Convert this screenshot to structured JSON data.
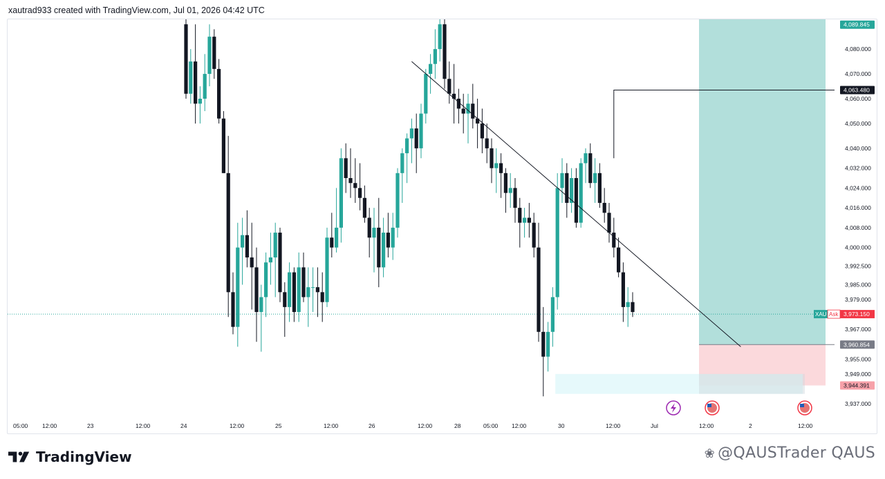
{
  "header": {
    "attribution": "xautrad933 created with TradingView.com, Jul 01, 2026 04:42 UTC"
  },
  "footer": {
    "brand": "TradingView"
  },
  "watermark": {
    "text": "@QAUSTrader QAUS"
  },
  "colors": {
    "up": "#26a69a",
    "down": "#131722",
    "ask": "#f23645",
    "profit_zone": "#b2dfdb",
    "loss_zone": "#fbd9dc",
    "demand_zone": "#e0f7fa"
  },
  "icons": [
    "lightning-event-icon",
    "us-flag-event-icon",
    "us-flag-event-icon"
  ],
  "chart_data": {
    "type": "candlestick",
    "symbol_tag": "XAU",
    "ask_tag": "Ask",
    "ylim": [
      3932,
      4092
    ],
    "y_ticks": [
      "4,080.000",
      "4,070.000",
      "4,060.000",
      "4,050.000",
      "4,040.000",
      "4,032.000",
      "4,024.000",
      "4,016.000",
      "4,008.000",
      "4,000.000",
      "3,992.500",
      "3,985.000",
      "3,979.000",
      "3,967.000",
      "3,955.000",
      "3,949.000",
      "3,937.000"
    ],
    "y_tick_values": [
      4080,
      4070,
      4060,
      4050,
      4040,
      4032,
      4024,
      4016,
      4008,
      4000,
      3992.5,
      3985,
      3979,
      3967,
      3955,
      3949,
      3937
    ],
    "x_ticks": [
      "05:00",
      "12:00",
      "23",
      "12:00",
      "24",
      "12:00",
      "25",
      "12:00",
      "26",
      "12:00",
      "28",
      "05:00",
      "12:00",
      "30",
      "12:00",
      "Jul",
      "12:00",
      "2",
      "12:00"
    ],
    "price_labels": {
      "top_target": "4,089.845",
      "high_level": "4,063.480",
      "current_ask": "3,973.150",
      "entry": "3,960.854",
      "stop": "3,944.391"
    },
    "price_values": {
      "top_target": 4089.845,
      "high_level": 4063.48,
      "current_ask": 3973.15,
      "entry": 3960.854,
      "stop": 3944.391
    },
    "candles": [
      [
        4090,
        4092,
        4060,
        4062
      ],
      [
        4062,
        4080,
        4058,
        4075
      ],
      [
        4075,
        4090,
        4050,
        4058
      ],
      [
        4058,
        4065,
        4050,
        4060
      ],
      [
        4060,
        4078,
        4055,
        4070
      ],
      [
        4070,
        4090,
        4065,
        4085
      ],
      [
        4085,
        4088,
        4068,
        4072
      ],
      [
        4072,
        4076,
        4050,
        4052
      ],
      [
        4052,
        4055,
        4030,
        4030
      ],
      [
        4030,
        4045,
        3972,
        3982
      ],
      [
        3982,
        3990,
        3965,
        3968
      ],
      [
        3968,
        4010,
        3960,
        4000
      ],
      [
        4000,
        4012,
        3985,
        4005
      ],
      [
        4005,
        4015,
        3992,
        3996
      ],
      [
        3996,
        4010,
        3975,
        3992
      ],
      [
        3992,
        4000,
        3962,
        3974
      ],
      [
        3974,
        3985,
        3958,
        3980
      ],
      [
        3980,
        3998,
        3972,
        3994
      ],
      [
        3994,
        4006,
        3985,
        3996
      ],
      [
        3996,
        4010,
        3980,
        4006
      ],
      [
        4006,
        4008,
        3978,
        3982
      ],
      [
        3982,
        3986,
        3964,
        3976
      ],
      [
        3976,
        3994,
        3970,
        3990
      ],
      [
        3990,
        3992,
        3970,
        3974
      ],
      [
        3974,
        3998,
        3970,
        3992
      ],
      [
        3992,
        3998,
        3978,
        3980
      ],
      [
        3980,
        3992,
        3968,
        3984
      ],
      [
        3984,
        3992,
        3974,
        3984
      ],
      [
        3984,
        3992,
        3972,
        3982
      ],
      [
        3982,
        3990,
        3970,
        3978
      ],
      [
        3978,
        4008,
        3976,
        4004
      ],
      [
        4004,
        4014,
        3996,
        4000
      ],
      [
        4000,
        4024,
        3998,
        4008
      ],
      [
        4008,
        4040,
        4002,
        4036
      ],
      [
        4036,
        4042,
        4022,
        4028
      ],
      [
        4028,
        4040,
        4020,
        4026
      ],
      [
        4026,
        4036,
        4018,
        4024
      ],
      [
        4024,
        4034,
        4015,
        4020
      ],
      [
        4020,
        4025,
        4010,
        4012
      ],
      [
        4012,
        4016,
        3996,
        4004
      ],
      [
        4004,
        4016,
        3990,
        4008
      ],
      [
        4008,
        4020,
        3984,
        3992
      ],
      [
        3992,
        4012,
        3988,
        4006
      ],
      [
        4006,
        4014,
        3996,
        4000
      ],
      [
        4000,
        4014,
        3995,
        4008
      ],
      [
        4008,
        4032,
        4004,
        4030
      ],
      [
        4030,
        4040,
        4018,
        4038
      ],
      [
        4038,
        4046,
        4026,
        4044
      ],
      [
        4044,
        4052,
        4034,
        4048
      ],
      [
        4048,
        4054,
        4030,
        4040
      ],
      [
        4040,
        4058,
        4036,
        4054
      ],
      [
        4054,
        4072,
        4050,
        4070
      ],
      [
        4070,
        4078,
        4062,
        4074
      ],
      [
        4074,
        4088,
        4068,
        4080
      ],
      [
        4080,
        4092,
        4075,
        4090
      ],
      [
        4090,
        4092,
        4064,
        4068
      ],
      [
        4068,
        4075,
        4058,
        4062
      ],
      [
        4062,
        4074,
        4050,
        4060
      ],
      [
        4060,
        4064,
        4050,
        4056
      ],
      [
        4056,
        4062,
        4046,
        4054
      ],
      [
        4054,
        4062,
        4042,
        4058
      ],
      [
        4058,
        4066,
        4048,
        4052
      ],
      [
        4052,
        4060,
        4040,
        4050
      ],
      [
        4050,
        4056,
        4038,
        4044
      ],
      [
        4044,
        4050,
        4034,
        4040
      ],
      [
        4040,
        4044,
        4026,
        4032
      ],
      [
        4032,
        4040,
        4022,
        4034
      ],
      [
        4034,
        4038,
        4020,
        4030
      ],
      [
        4030,
        4032,
        4014,
        4022
      ],
      [
        4022,
        4030,
        4016,
        4024
      ],
      [
        4024,
        4028,
        4010,
        4016
      ],
      [
        4016,
        4020,
        4000,
        4010
      ],
      [
        4010,
        4016,
        4004,
        4012
      ],
      [
        4012,
        4018,
        4004,
        4010
      ],
      [
        4010,
        4014,
        3996,
        4000
      ],
      [
        4000,
        4010,
        3962,
        3966
      ],
      [
        3966,
        3976,
        3940,
        3956
      ],
      [
        3956,
        3970,
        3950,
        3966
      ],
      [
        3966,
        3984,
        3960,
        3980
      ],
      [
        3980,
        4030,
        3975,
        4024
      ],
      [
        4024,
        4036,
        4018,
        4030
      ],
      [
        4030,
        4034,
        4012,
        4018
      ],
      [
        4018,
        4032,
        4014,
        4028
      ],
      [
        4028,
        4032,
        4008,
        4010
      ],
      [
        4010,
        4036,
        4008,
        4034
      ],
      [
        4034,
        4040,
        4026,
        4038
      ],
      [
        4038,
        4042,
        4024,
        4026
      ],
      [
        4026,
        4036,
        4018,
        4030
      ],
      [
        4030,
        4034,
        4016,
        4018
      ],
      [
        4018,
        4024,
        4010,
        4014
      ],
      [
        4014,
        4018,
        4002,
        4006
      ],
      [
        4006,
        4012,
        3996,
        4000
      ],
      [
        4000,
        4004,
        3988,
        3990
      ],
      [
        3990,
        3994,
        3970,
        3976
      ],
      [
        3976,
        3984,
        3968,
        3978
      ],
      [
        3978,
        3982,
        3972,
        3974
      ]
    ],
    "trendline": {
      "from": [
        48,
        4075
      ],
      "to": [
        118,
        3960
      ]
    },
    "high_level_line": {
      "from_index": 91,
      "price": 4063.48
    },
    "demand_zone": {
      "top": 3949,
      "bottom": 3941,
      "from_index": 79
    }
  }
}
